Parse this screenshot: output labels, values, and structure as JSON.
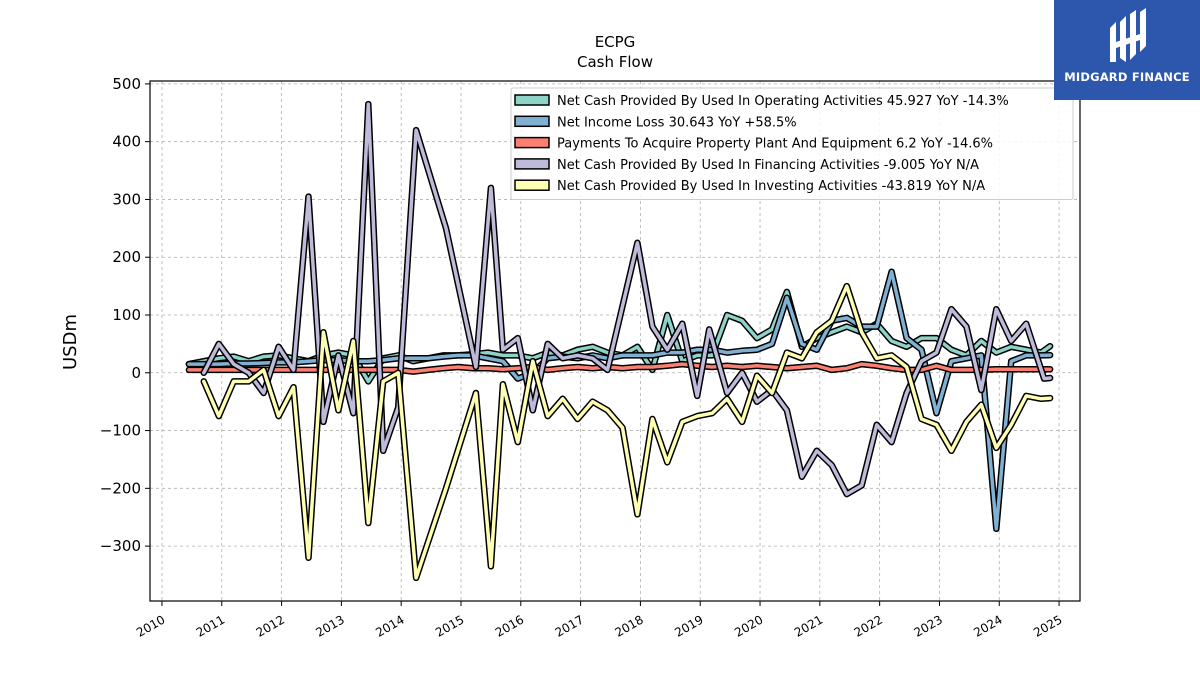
{
  "chart_data": {
    "type": "line",
    "title": "ECPG",
    "subtitle": "Cash Flow",
    "xlabel": "",
    "ylabel": "USDm",
    "xlim": [
      2009.8,
      2025.35
    ],
    "ylim": [
      -395,
      505
    ],
    "x_ticks": [
      "2010",
      "2011",
      "2012",
      "2013",
      "2014",
      "2015",
      "2016",
      "2017",
      "2018",
      "2019",
      "2020",
      "2021",
      "2022",
      "2023",
      "2024",
      "2025"
    ],
    "y_ticks": [
      500,
      400,
      300,
      200,
      100,
      0,
      -100,
      -200,
      -300
    ],
    "y_tick_labels": [
      "500",
      "400",
      "300",
      "200",
      "100",
      "0",
      "−100",
      "−200",
      "−300"
    ],
    "grid": true,
    "legend_position": "top-right",
    "series": [
      {
        "name": "Net Cash Provided By Used In Operating Activities  45.927 YoY -14.3%",
        "color": "#8dd3c7",
        "points": [
          [
            2010.45,
            15
          ],
          [
            2010.7,
            20
          ],
          [
            2010.95,
            25
          ],
          [
            2011.2,
            28
          ],
          [
            2011.45,
            20
          ],
          [
            2011.7,
            28
          ],
          [
            2011.95,
            30
          ],
          [
            2012.2,
            25
          ],
          [
            2012.45,
            20
          ],
          [
            2012.7,
            30
          ],
          [
            2012.95,
            35
          ],
          [
            2013.2,
            30
          ],
          [
            2013.45,
            -15
          ],
          [
            2013.7,
            25
          ],
          [
            2013.95,
            30
          ],
          [
            2014.2,
            20
          ],
          [
            2014.45,
            25
          ],
          [
            2014.7,
            30
          ],
          [
            2014.95,
            30
          ],
          [
            2015.2,
            32
          ],
          [
            2015.45,
            35
          ],
          [
            2015.7,
            30
          ],
          [
            2015.95,
            30
          ],
          [
            2016.2,
            25
          ],
          [
            2016.45,
            35
          ],
          [
            2016.7,
            30
          ],
          [
            2016.95,
            40
          ],
          [
            2017.2,
            45
          ],
          [
            2017.45,
            35
          ],
          [
            2017.7,
            30
          ],
          [
            2017.95,
            45
          ],
          [
            2018.2,
            5
          ],
          [
            2018.45,
            100
          ],
          [
            2018.7,
            20
          ],
          [
            2018.95,
            30
          ],
          [
            2019.2,
            30
          ],
          [
            2019.45,
            100
          ],
          [
            2019.7,
            90
          ],
          [
            2019.95,
            60
          ],
          [
            2020.2,
            75
          ],
          [
            2020.45,
            140
          ],
          [
            2020.7,
            45
          ],
          [
            2020.95,
            60
          ],
          [
            2021.2,
            70
          ],
          [
            2021.45,
            80
          ],
          [
            2021.7,
            70
          ],
          [
            2021.95,
            85
          ],
          [
            2022.2,
            55
          ],
          [
            2022.45,
            45
          ],
          [
            2022.7,
            60
          ],
          [
            2022.95,
            60
          ],
          [
            2023.2,
            40
          ],
          [
            2023.45,
            30
          ],
          [
            2023.7,
            55
          ],
          [
            2023.95,
            35
          ],
          [
            2024.2,
            45
          ],
          [
            2024.45,
            40
          ],
          [
            2024.7,
            35
          ],
          [
            2024.85,
            46
          ]
        ]
      },
      {
        "name": "Net Income Loss  30.643 YoY +58.5%",
        "color": "#80b1d3",
        "points": [
          [
            2010.45,
            15
          ],
          [
            2010.7,
            15
          ],
          [
            2010.95,
            15
          ],
          [
            2011.2,
            16
          ],
          [
            2011.45,
            16
          ],
          [
            2011.7,
            17
          ],
          [
            2011.95,
            18
          ],
          [
            2012.2,
            18
          ],
          [
            2012.45,
            20
          ],
          [
            2012.7,
            22
          ],
          [
            2012.95,
            22
          ],
          [
            2013.2,
            20
          ],
          [
            2013.45,
            20
          ],
          [
            2013.7,
            22
          ],
          [
            2013.95,
            25
          ],
          [
            2014.2,
            25
          ],
          [
            2014.45,
            25
          ],
          [
            2014.7,
            28
          ],
          [
            2014.95,
            30
          ],
          [
            2015.2,
            30
          ],
          [
            2015.45,
            25
          ],
          [
            2015.7,
            20
          ],
          [
            2015.95,
            -10
          ],
          [
            2016.2,
            0
          ],
          [
            2016.45,
            25
          ],
          [
            2016.7,
            28
          ],
          [
            2016.95,
            25
          ],
          [
            2017.2,
            30
          ],
          [
            2017.45,
            25
          ],
          [
            2017.7,
            30
          ],
          [
            2017.95,
            30
          ],
          [
            2018.2,
            30
          ],
          [
            2018.45,
            35
          ],
          [
            2018.7,
            35
          ],
          [
            2018.95,
            40
          ],
          [
            2019.2,
            40
          ],
          [
            2019.45,
            35
          ],
          [
            2019.7,
            38
          ],
          [
            2019.95,
            40
          ],
          [
            2020.2,
            50
          ],
          [
            2020.45,
            130
          ],
          [
            2020.7,
            50
          ],
          [
            2020.95,
            40
          ],
          [
            2021.2,
            90
          ],
          [
            2021.45,
            95
          ],
          [
            2021.7,
            80
          ],
          [
            2021.95,
            80
          ],
          [
            2022.2,
            175
          ],
          [
            2022.45,
            60
          ],
          [
            2022.7,
            40
          ],
          [
            2022.95,
            -70
          ],
          [
            2023.2,
            20
          ],
          [
            2023.45,
            25
          ],
          [
            2023.7,
            30
          ],
          [
            2023.95,
            -270
          ],
          [
            2024.2,
            20
          ],
          [
            2024.45,
            30
          ],
          [
            2024.7,
            30
          ],
          [
            2024.85,
            30.643
          ]
        ]
      },
      {
        "name": "Payments To Acquire Property Plant And Equipment  6.2 YoY -14.6%",
        "color": "#fb8072",
        "points": [
          [
            2010.45,
            5
          ],
          [
            2010.95,
            5
          ],
          [
            2011.45,
            5
          ],
          [
            2011.95,
            5
          ],
          [
            2012.45,
            5
          ],
          [
            2012.95,
            5
          ],
          [
            2013.45,
            5
          ],
          [
            2013.95,
            5
          ],
          [
            2014.2,
            2
          ],
          [
            2014.45,
            5
          ],
          [
            2014.7,
            8
          ],
          [
            2014.95,
            10
          ],
          [
            2015.2,
            8
          ],
          [
            2015.45,
            8
          ],
          [
            2015.7,
            6
          ],
          [
            2015.95,
            8
          ],
          [
            2016.2,
            10
          ],
          [
            2016.45,
            5
          ],
          [
            2016.7,
            8
          ],
          [
            2016.95,
            10
          ],
          [
            2017.2,
            8
          ],
          [
            2017.45,
            10
          ],
          [
            2017.7,
            8
          ],
          [
            2017.95,
            10
          ],
          [
            2018.2,
            10
          ],
          [
            2018.45,
            12
          ],
          [
            2018.7,
            15
          ],
          [
            2018.95,
            12
          ],
          [
            2019.2,
            10
          ],
          [
            2019.45,
            12
          ],
          [
            2019.7,
            10
          ],
          [
            2019.95,
            12
          ],
          [
            2020.2,
            10
          ],
          [
            2020.45,
            8
          ],
          [
            2020.7,
            10
          ],
          [
            2020.95,
            12
          ],
          [
            2021.2,
            5
          ],
          [
            2021.45,
            8
          ],
          [
            2021.7,
            15
          ],
          [
            2021.95,
            12
          ],
          [
            2022.2,
            8
          ],
          [
            2022.45,
            5
          ],
          [
            2022.7,
            5
          ],
          [
            2022.95,
            12
          ],
          [
            2023.2,
            5
          ],
          [
            2023.45,
            5
          ],
          [
            2023.7,
            5
          ],
          [
            2023.95,
            6
          ],
          [
            2024.2,
            6
          ],
          [
            2024.45,
            6
          ],
          [
            2024.7,
            6
          ],
          [
            2024.85,
            6.2
          ]
        ]
      },
      {
        "name": "Net Cash Provided By Used In Financing Activities  -9.005 YoY N/A",
        "color": "#bebada",
        "points": [
          [
            2010.7,
            0
          ],
          [
            2010.95,
            50
          ],
          [
            2011.2,
            15
          ],
          [
            2011.45,
            0
          ],
          [
            2011.7,
            -35
          ],
          [
            2011.95,
            45
          ],
          [
            2012.2,
            5
          ],
          [
            2012.45,
            305
          ],
          [
            2012.7,
            -85
          ],
          [
            2012.95,
            30
          ],
          [
            2013.2,
            -70
          ],
          [
            2013.45,
            465
          ],
          [
            2013.7,
            -135
          ],
          [
            2013.95,
            -60
          ],
          [
            2014.25,
            420
          ],
          [
            2014.75,
            250
          ],
          [
            2015.25,
            10
          ],
          [
            2015.5,
            320
          ],
          [
            2015.7,
            40
          ],
          [
            2015.95,
            60
          ],
          [
            2016.2,
            -65
          ],
          [
            2016.45,
            50
          ],
          [
            2016.7,
            25
          ],
          [
            2016.95,
            30
          ],
          [
            2017.2,
            25
          ],
          [
            2017.45,
            5
          ],
          [
            2017.95,
            225
          ],
          [
            2018.2,
            80
          ],
          [
            2018.45,
            40
          ],
          [
            2018.7,
            85
          ],
          [
            2018.95,
            -40
          ],
          [
            2019.15,
            75
          ],
          [
            2019.45,
            -35
          ],
          [
            2019.7,
            0
          ],
          [
            2019.95,
            -50
          ],
          [
            2020.2,
            -30
          ],
          [
            2020.45,
            -65
          ],
          [
            2020.7,
            -180
          ],
          [
            2020.95,
            -135
          ],
          [
            2021.2,
            -160
          ],
          [
            2021.45,
            -210
          ],
          [
            2021.7,
            -195
          ],
          [
            2021.95,
            -90
          ],
          [
            2022.2,
            -120
          ],
          [
            2022.45,
            -35
          ],
          [
            2022.7,
            20
          ],
          [
            2022.95,
            35
          ],
          [
            2023.2,
            110
          ],
          [
            2023.45,
            80
          ],
          [
            2023.7,
            -30
          ],
          [
            2023.95,
            110
          ],
          [
            2024.2,
            55
          ],
          [
            2024.45,
            85
          ],
          [
            2024.75,
            -10
          ],
          [
            2024.85,
            -9.005
          ]
        ]
      },
      {
        "name": "Net Cash Provided By Used In Investing Activities  -43.819 YoY N/A",
        "color": "#ffffb3",
        "points": [
          [
            2010.7,
            -15
          ],
          [
            2010.95,
            -75
          ],
          [
            2011.2,
            -15
          ],
          [
            2011.45,
            -15
          ],
          [
            2011.7,
            5
          ],
          [
            2011.95,
            -75
          ],
          [
            2012.2,
            -25
          ],
          [
            2012.45,
            -320
          ],
          [
            2012.7,
            70
          ],
          [
            2012.95,
            -65
          ],
          [
            2013.2,
            55
          ],
          [
            2013.45,
            -260
          ],
          [
            2013.7,
            -15
          ],
          [
            2013.95,
            0
          ],
          [
            2014.25,
            -355
          ],
          [
            2014.75,
            -200
          ],
          [
            2015.25,
            -35
          ],
          [
            2015.5,
            -335
          ],
          [
            2015.7,
            -20
          ],
          [
            2015.95,
            -120
          ],
          [
            2016.2,
            20
          ],
          [
            2016.45,
            -75
          ],
          [
            2016.7,
            -45
          ],
          [
            2016.95,
            -80
          ],
          [
            2017.2,
            -50
          ],
          [
            2017.45,
            -65
          ],
          [
            2017.7,
            -95
          ],
          [
            2017.95,
            -245
          ],
          [
            2018.2,
            -80
          ],
          [
            2018.45,
            -155
          ],
          [
            2018.7,
            -85
          ],
          [
            2018.95,
            -75
          ],
          [
            2019.2,
            -70
          ],
          [
            2019.45,
            -45
          ],
          [
            2019.7,
            -85
          ],
          [
            2019.95,
            -5
          ],
          [
            2020.2,
            -35
          ],
          [
            2020.45,
            35
          ],
          [
            2020.7,
            25
          ],
          [
            2020.95,
            70
          ],
          [
            2021.2,
            90
          ],
          [
            2021.45,
            150
          ],
          [
            2021.7,
            70
          ],
          [
            2021.95,
            25
          ],
          [
            2022.2,
            30
          ],
          [
            2022.45,
            10
          ],
          [
            2022.7,
            -80
          ],
          [
            2022.95,
            -90
          ],
          [
            2023.2,
            -135
          ],
          [
            2023.45,
            -85
          ],
          [
            2023.7,
            -55
          ],
          [
            2023.95,
            -130
          ],
          [
            2024.2,
            -90
          ],
          [
            2024.45,
            -40
          ],
          [
            2024.7,
            -45
          ],
          [
            2024.85,
            -43.819
          ]
        ]
      }
    ]
  },
  "logo": {
    "brand": "MIDGARD FINANCE"
  }
}
